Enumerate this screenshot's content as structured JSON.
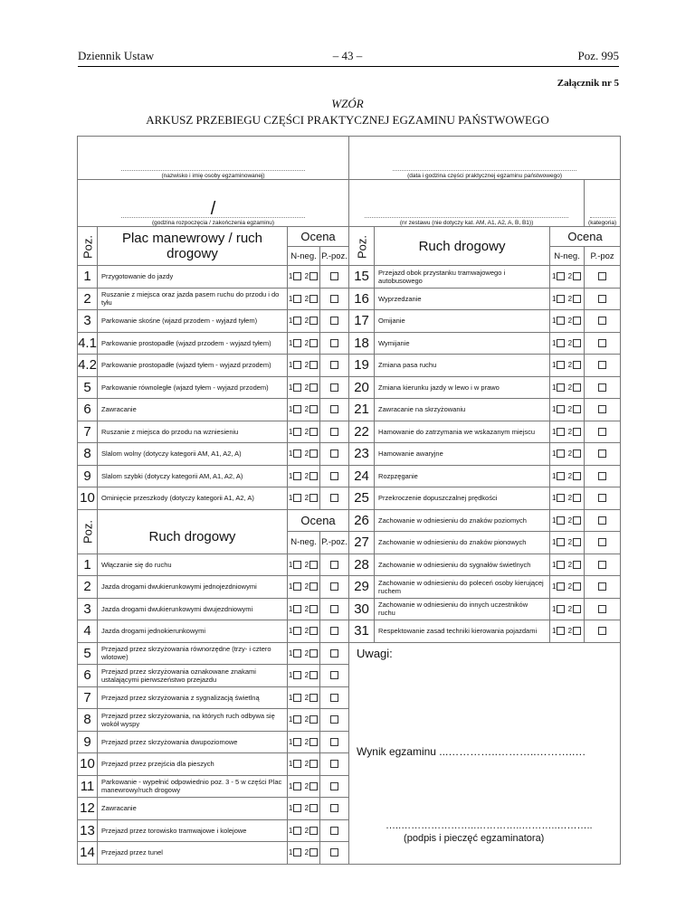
{
  "header": {
    "left": "Dziennik Ustaw",
    "page": "– 43 –",
    "right": "Poz. 995",
    "annex": "Załącznik nr 5",
    "wzor": "WZÓR",
    "title": "ARKUSZ PRZEBIEGU CZĘŚCI PRAKTYCZNEJ EGZAMINU PAŃSTWOWEGO"
  },
  "form": {
    "name_caption": "(nazwisko i imię osoby egzaminowanej)",
    "date_caption": "(data i godzina części praktycznej egzaminu państwowego)",
    "time_separator": "/",
    "time_caption": "(godzina rozpoczęcia / zakończenia egzaminu)",
    "set_caption": "(nr zestawu (nie dotyczy kat. AM, A1, A2, A, B, B1))",
    "category_caption": "(kategoria)"
  },
  "cols": {
    "poz": "Poz.",
    "left_title": "Plac manewrowy / ruch drogowy",
    "right_title": "Ruch drogowy",
    "ocena": "Ocena",
    "nneg": "N-neg.",
    "ppoz": "P.-poz.",
    "ppoz_right": "P.-poz",
    "grade1": "1",
    "grade2": "2"
  },
  "left_rows": [
    {
      "no": "1",
      "text": "Przygotowanie do jazdy"
    },
    {
      "no": "2",
      "text": "Ruszanie z miejsca oraz jazda pasem ruchu do przodu i do tyłu"
    },
    {
      "no": "3",
      "text": "Parkowanie skośne (wjazd przodem - wyjazd tyłem)"
    },
    {
      "no": "4.1",
      "text": "Parkowanie prostopadłe (wjazd przodem - wyjazd tyłem)"
    },
    {
      "no": "4.2",
      "text": "Parkowanie prostopadłe (wjazd tyłem - wyjazd przodem)"
    },
    {
      "no": "5",
      "text": "Parkowanie równoległe (wjazd tyłem - wyjazd przodem)"
    },
    {
      "no": "6",
      "text": "Zawracanie"
    },
    {
      "no": "7",
      "text": "Ruszanie z miejsca do przodu na wzniesieniu"
    },
    {
      "no": "8",
      "text": "Slalom wolny (dotyczy kategorii AM, A1, A2, A)"
    },
    {
      "no": "9",
      "text": "Slalom szybki (dotyczy kategorii AM, A1, A2, A)"
    },
    {
      "no": "10",
      "text": "Ominięcie przeszkody (dotyczy kategorii A1, A2, A)"
    }
  ],
  "right_rows": [
    {
      "no": "15",
      "text": "Przejazd obok przystanku tramwajowego i autobusowego"
    },
    {
      "no": "16",
      "text": "Wyprzedzanie"
    },
    {
      "no": "17",
      "text": "Omijanie"
    },
    {
      "no": "18",
      "text": "Wymijanie"
    },
    {
      "no": "19",
      "text": "Zmiana pasa ruchu"
    },
    {
      "no": "20",
      "text": "Zmiana kierunku jazdy w lewo i w prawo"
    },
    {
      "no": "21",
      "text": "Zawracanie na skrzyżowaniu"
    },
    {
      "no": "22",
      "text": "Hamowanie do zatrzymania we wskazanym miejscu"
    },
    {
      "no": "23",
      "text": "Hamowanie awaryjne"
    },
    {
      "no": "24",
      "text": "Rozpzęganie"
    },
    {
      "no": "25",
      "text": "Przekroczenie dopuszczalnej prędkości"
    },
    {
      "no": "26",
      "text": "Zachowanie w odniesieniu do znaków poziomych"
    },
    {
      "no": "27",
      "text": "Zachowanie w odniesieniu do znaków pionowych"
    },
    {
      "no": "28",
      "text": "Zachowanie w odniesieniu do sygnałów świetlnych"
    },
    {
      "no": "29",
      "text": "Zachowanie w odniesieniu do poleceń osoby kierującej ruchem"
    },
    {
      "no": "30",
      "text": "Zachowanie w odniesieniu do innych uczestników ruchu"
    },
    {
      "no": "31",
      "text": "Respektowanie zasad techniki kierowania pojazdami"
    }
  ],
  "road_rows": [
    {
      "no": "1",
      "text": "Włączanie się do ruchu"
    },
    {
      "no": "2",
      "text": "Jazda drogami dwukierunkowymi jednojezdniowymi"
    },
    {
      "no": "3",
      "text": "Jazda drogami dwukierunkowymi dwujezdniowymi"
    },
    {
      "no": "4",
      "text": "Jazda drogami jednokierunkowymi"
    },
    {
      "no": "5",
      "text": "Przejazd przez skrzyżowania równorzędne (trzy- i cztero wlotowe)"
    },
    {
      "no": "6",
      "text": "Przejazd przez skrzyżowania oznakowane znakami ustalającymi pierwszeństwo przejazdu"
    },
    {
      "no": "7",
      "text": "Przejazd przez skrzyżowania z sygnalizacją świetlną"
    },
    {
      "no": "8",
      "text": "Przejazd przez skrzyżowania, na których ruch odbywa się wokół wyspy"
    },
    {
      "no": "9",
      "text": "Przejazd przez skrzyżowania dwupoziomowe"
    },
    {
      "no": "10",
      "text": "Przejazd przez przejścia dla pieszych"
    },
    {
      "no": "11",
      "text": "Parkowanie - wypełnić odpowiednio poz. 3 - 5 w części Plac manewrowy/ruch drogowy"
    },
    {
      "no": "12",
      "text": "Zawracanie"
    },
    {
      "no": "13",
      "text": "Przejazd przez torowisko tramwajowe i kolejowe"
    },
    {
      "no": "14",
      "text": "Przejazd przez tunel"
    }
  ],
  "remarks": {
    "uwagi": "Uwagi:",
    "result": "Wynik egzaminu ...…………..………..………..…",
    "signature_dots": "…..…………………..…………..………..………..",
    "signature_caption": "(podpis i pieczęć egzaminatora)"
  }
}
